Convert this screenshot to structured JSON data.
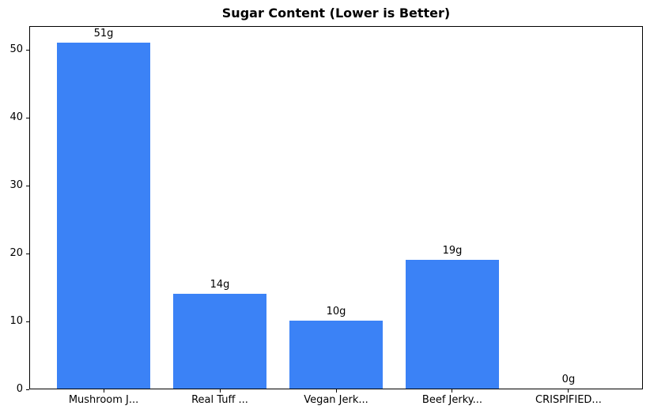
{
  "title": "Sugar Content (Lower is Better)",
  "chart_data": {
    "type": "bar",
    "title": "Sugar Content (Lower is Better)",
    "categories": [
      "Mushroom J...",
      "Real Tuff ...",
      "Vegan Jerk...",
      "Beef Jerky...",
      "CRISPIFIED..."
    ],
    "values": [
      51,
      14,
      10,
      19,
      0
    ],
    "value_labels": [
      "51g",
      "14g",
      "10g",
      "19g",
      "0g"
    ],
    "xlabel": "",
    "ylabel": "",
    "ylim": [
      0,
      53.55
    ],
    "yticks": [
      0,
      10,
      20,
      30,
      40,
      50
    ],
    "bar_color": "#3b82f6",
    "axis_color": "#000000",
    "text_color": "#000000",
    "background_color": "#ffffff",
    "grid": false,
    "legend": "none",
    "bar_width_fraction": 0.8
  }
}
